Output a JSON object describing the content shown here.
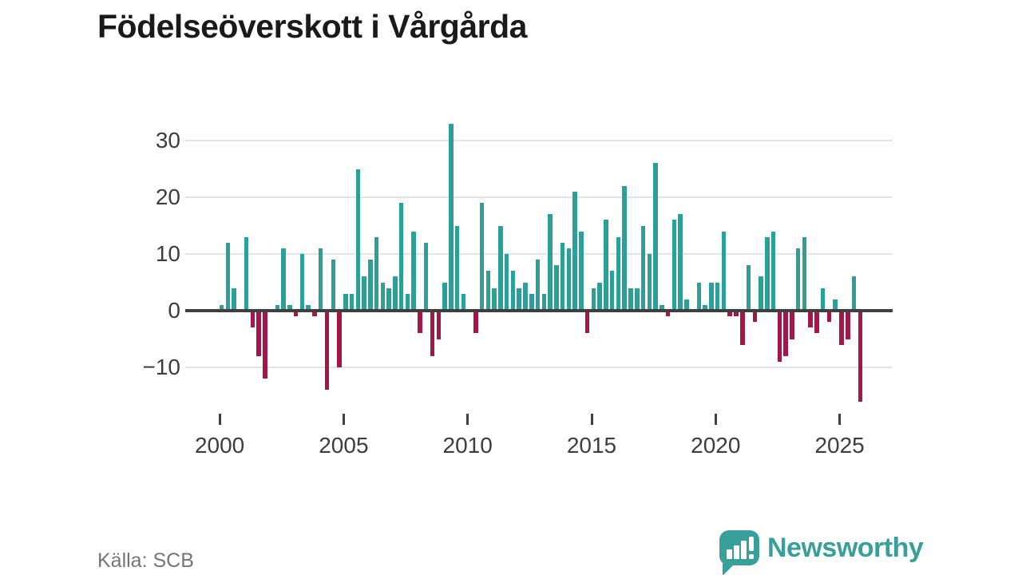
{
  "header": {
    "title": "Födelseöverskott i Vårgårda"
  },
  "footer": {
    "source": "Källa: SCB",
    "brand": "Newsworthy"
  },
  "colors": {
    "positive_bar": "#2aa099",
    "negative_bar": "#a3164a",
    "zero_axis": "#3f3f3f",
    "gridline": "#e4e4e4",
    "brand_teal": "#38a098",
    "title_text": "#1a1a1a",
    "axis_text": "#3d3d3d",
    "source_text": "#757575"
  },
  "chart_data": {
    "type": "bar",
    "title": "Födelseöverskott i Vårgårda",
    "frequency": "quarterly",
    "start_period": "2000 Q1",
    "end_period": "2025 Q4",
    "grid": true,
    "y_axis_ticks": [
      30,
      20,
      10,
      0,
      -10
    ],
    "x_axis_ticks": [
      2000,
      2005,
      2010,
      2015,
      2020,
      2025
    ],
    "ylim": [
      -17,
      34
    ],
    "series": [
      {
        "name": "Födelseöverskott",
        "values_by_year": [
          {
            "year": 2000,
            "quarters": [
              1,
              12,
              4,
              0
            ]
          },
          {
            "year": 2001,
            "quarters": [
              13,
              -3,
              -8,
              -12
            ]
          },
          {
            "year": 2002,
            "quarters": [
              0,
              1,
              11,
              1
            ]
          },
          {
            "year": 2003,
            "quarters": [
              -1,
              10,
              1,
              -1
            ]
          },
          {
            "year": 2004,
            "quarters": [
              11,
              -14,
              9,
              -10
            ]
          },
          {
            "year": 2005,
            "quarters": [
              3,
              3,
              25,
              6
            ]
          },
          {
            "year": 2006,
            "quarters": [
              9,
              13,
              5,
              4
            ]
          },
          {
            "year": 2007,
            "quarters": [
              6,
              19,
              3,
              14
            ]
          },
          {
            "year": 2008,
            "quarters": [
              -4,
              12,
              -8,
              -5
            ]
          },
          {
            "year": 2009,
            "quarters": [
              5,
              33,
              15,
              3
            ]
          },
          {
            "year": 2010,
            "quarters": [
              0,
              -4,
              19,
              7
            ]
          },
          {
            "year": 2011,
            "quarters": [
              4,
              15,
              10,
              7
            ]
          },
          {
            "year": 2012,
            "quarters": [
              4,
              5,
              3,
              9
            ]
          },
          {
            "year": 2013,
            "quarters": [
              3,
              17,
              8,
              12
            ]
          },
          {
            "year": 2014,
            "quarters": [
              11,
              21,
              14,
              -4
            ]
          },
          {
            "year": 2015,
            "quarters": [
              4,
              5,
              16,
              7
            ]
          },
          {
            "year": 2016,
            "quarters": [
              13,
              22,
              4,
              4
            ]
          },
          {
            "year": 2017,
            "quarters": [
              15,
              10,
              26,
              1
            ]
          },
          {
            "year": 2018,
            "quarters": [
              -1,
              16,
              17,
              2
            ]
          },
          {
            "year": 2019,
            "quarters": [
              0,
              5,
              1,
              5
            ]
          },
          {
            "year": 2020,
            "quarters": [
              5,
              14,
              -1,
              -1
            ]
          },
          {
            "year": 2021,
            "quarters": [
              -6,
              8,
              -2,
              6
            ]
          },
          {
            "year": 2022,
            "quarters": [
              13,
              14,
              -9,
              -8
            ]
          },
          {
            "year": 2023,
            "quarters": [
              -5,
              11,
              13,
              -3
            ]
          },
          {
            "year": 2024,
            "quarters": [
              -4,
              4,
              -2,
              2
            ]
          },
          {
            "year": 2025,
            "quarters": [
              -6,
              -5,
              6,
              -16
            ]
          }
        ]
      }
    ]
  }
}
